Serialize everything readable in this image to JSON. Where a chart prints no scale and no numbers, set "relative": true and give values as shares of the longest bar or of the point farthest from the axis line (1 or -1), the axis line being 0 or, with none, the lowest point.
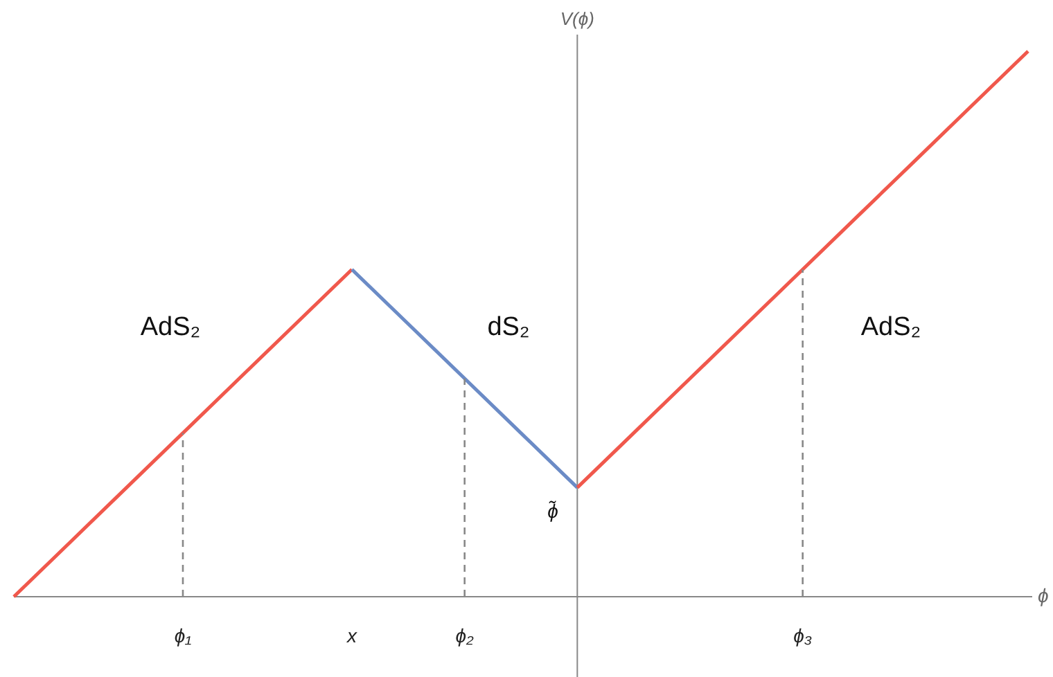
{
  "chart_data": {
    "type": "line",
    "relative": true,
    "xlabel": "ϕ",
    "ylabel": "V(ϕ)",
    "categories": [
      null,
      null,
      null,
      "ϕ₁",
      null,
      null,
      "x",
      null,
      "ϕ₂",
      null,
      null,
      null,
      null,
      null,
      "ϕ₃",
      null,
      null,
      null,
      null
    ],
    "marker": "none",
    "series": [
      {
        "color": "#f0584c",
        "values": [
          0,
          0.1,
          0.2,
          0.3,
          0.4,
          0.5,
          0.6,
          null,
          null,
          null,
          null,
          null,
          null,
          null,
          null,
          null,
          null,
          null,
          null
        ]
      },
      {
        "color": "#6b8bc6",
        "values": [
          null,
          null,
          null,
          null,
          null,
          null,
          0.6,
          0.5,
          0.4,
          0.3,
          0.2,
          null,
          null,
          null,
          null,
          null,
          null,
          null,
          null
        ]
      },
      {
        "color": "#f0584c",
        "values": [
          null,
          null,
          null,
          null,
          null,
          null,
          null,
          null,
          null,
          null,
          0.2,
          0.3,
          0.4,
          0.5,
          0.6,
          0.7,
          0.8,
          0.9,
          1.0
        ]
      }
    ],
    "ref_lines": [
      {
        "axis": "x",
        "value": "ϕ₁",
        "line_style": "dashed",
        "color": "#888888"
      },
      {
        "axis": "x",
        "value": "ϕ₂",
        "line_style": "dashed",
        "color": "#888888"
      },
      {
        "axis": "x",
        "value": "ϕ₃",
        "line_style": "dashed",
        "color": "#888888"
      }
    ],
    "annotations": [
      "AdS₂",
      "dS₂",
      "AdS₂",
      "ϕ̃"
    ]
  }
}
